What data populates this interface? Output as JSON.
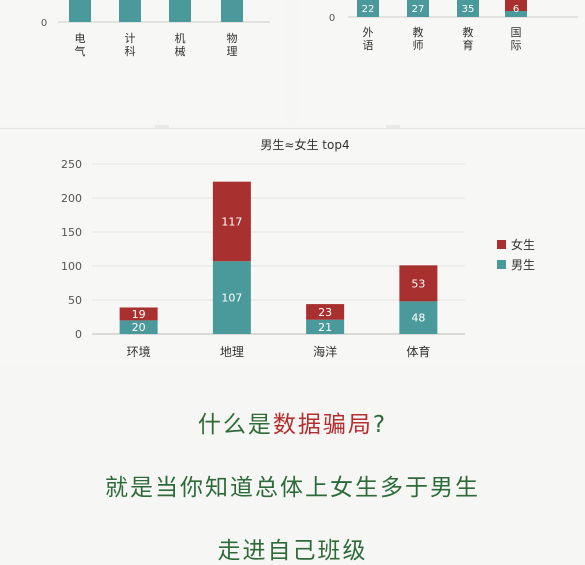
{
  "colors": {
    "male": "#4a9a9c",
    "female": "#a8302f",
    "caption_green": "#2f6b3a",
    "caption_red": "#b52d2d"
  },
  "chart_data": [
    {
      "type": "bar",
      "partial": true,
      "tick_labels_y": [
        "0"
      ],
      "categories": [
        "电气",
        "计科",
        "机械",
        "物理"
      ],
      "series": [
        {
          "name": "男生",
          "values": [
            null,
            null,
            null,
            null
          ]
        }
      ]
    },
    {
      "type": "bar",
      "stacked": true,
      "partial": true,
      "tick_labels_y": [
        "0"
      ],
      "categories": [
        "外语",
        "教师",
        "教育",
        "国际"
      ],
      "series": [
        {
          "name": "男生",
          "values": [
            22,
            27,
            35,
            6
          ]
        },
        {
          "name": "女生",
          "values": [
            null,
            null,
            null,
            null
          ]
        }
      ]
    },
    {
      "type": "bar",
      "stacked": true,
      "title": "男生≈女生 top4",
      "categories": [
        "环境",
        "地理",
        "海洋",
        "体育"
      ],
      "ylim": [
        0,
        250
      ],
      "yticks": [
        0,
        50,
        100,
        150,
        200,
        250
      ],
      "series": [
        {
          "name": "男生",
          "values": [
            20,
            107,
            21,
            48
          ]
        },
        {
          "name": "女生",
          "values": [
            19,
            117,
            23,
            53
          ]
        }
      ],
      "legend_order": [
        "女生",
        "男生"
      ],
      "legend_position": "right",
      "grid": true
    }
  ],
  "captions": {
    "line1_prefix": "什么是",
    "line1_highlight": "数据骗局",
    "line1_suffix": "?",
    "line2": "就是当你知道总体上女生多于男生",
    "line3": "走进自己班级"
  }
}
